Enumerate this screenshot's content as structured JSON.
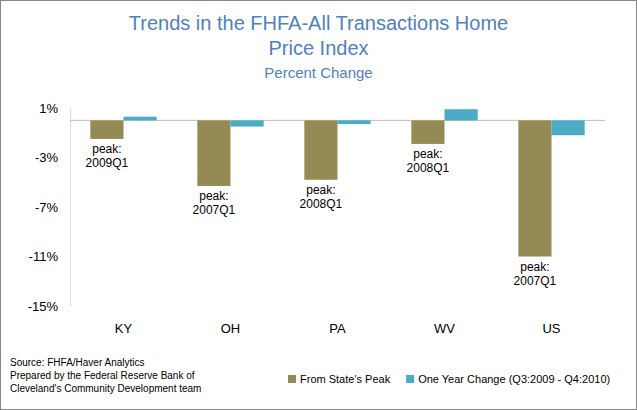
{
  "chart_data": {
    "type": "bar",
    "title": "Trends in the FHFA-All Transactions Home Price Index",
    "subtitle": "Percent Change",
    "categories": [
      "KY",
      "OH",
      "PA",
      "WV",
      "US"
    ],
    "series": [
      {
        "name": "From State's Peak",
        "color": "#948a54",
        "values": [
          -1.5,
          -5.3,
          -4.8,
          -1.9,
          -11.0
        ]
      },
      {
        "name": "One Year Change (Q3:2009 - Q4:2010)",
        "color": "#4bacc6",
        "values": [
          0.3,
          -0.5,
          -0.3,
          0.9,
          -1.2
        ]
      }
    ],
    "annotations": [
      [
        "peak:",
        "2009Q1"
      ],
      [
        "peak:",
        "2007Q1"
      ],
      [
        "peak:",
        "2008Q1"
      ],
      [
        "peak:",
        "2008Q1"
      ],
      [
        "peak:",
        "2007Q1"
      ]
    ],
    "notes": [
      "Source: FHFA/Haver Analytics",
      "Prepared by the Federal Reserve Bank of",
      "Cleveland's Community Development team"
    ],
    "ylim": [
      -15,
      1
    ],
    "yticks": [
      {
        "value": 1,
        "label": "1%"
      },
      {
        "value": -3,
        "label": "-3%"
      },
      {
        "value": -7,
        "label": "-7%"
      },
      {
        "value": -11,
        "label": "-11%"
      },
      {
        "value": -15,
        "label": "-15%"
      }
    ],
    "legend": "bottom",
    "grid": false
  }
}
